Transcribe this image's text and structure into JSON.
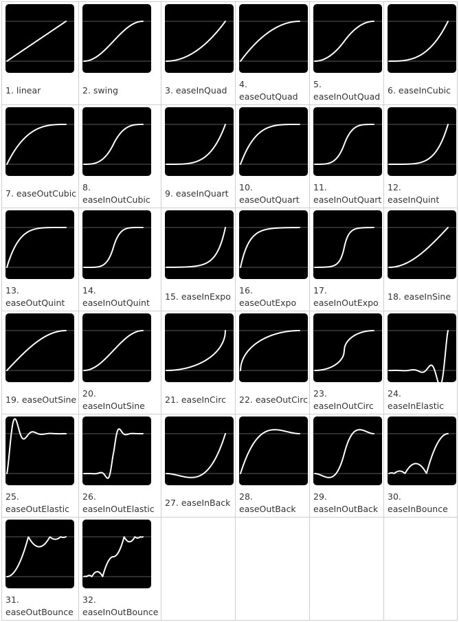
{
  "easings": [
    {
      "label": "1. linear",
      "icon": "linear-curve-icon"
    },
    {
      "label": "2. swing",
      "icon": "swing-curve-icon"
    },
    {
      "label": "3. easeInQuad",
      "icon": "easeInQuad-curve-icon"
    },
    {
      "label": "4. easeOutQuad",
      "icon": "easeOutQuad-curve-icon"
    },
    {
      "label": "5. easeInOutQuad",
      "icon": "easeInOutQuad-curve-icon"
    },
    {
      "label": "6. easeInCubic",
      "icon": "easeInCubic-curve-icon"
    },
    {
      "label": "7. easeOutCubic",
      "icon": "easeOutCubic-curve-icon"
    },
    {
      "label": "8. easeInOutCubic",
      "icon": "easeInOutCubic-curve-icon"
    },
    {
      "label": "9. easeInQuart",
      "icon": "easeInQuart-curve-icon"
    },
    {
      "label": "10. easeOutQuart",
      "icon": "easeOutQuart-curve-icon"
    },
    {
      "label": "11. easeInOutQuart",
      "icon": "easeInOutQuart-curve-icon"
    },
    {
      "label": "12. easeInQuint",
      "icon": "easeInQuint-curve-icon"
    },
    {
      "label": "13. easeOutQuint",
      "icon": "easeOutQuint-curve-icon"
    },
    {
      "label": "14. easeInOutQuint",
      "icon": "easeInOutQuint-curve-icon"
    },
    {
      "label": "15. easeInExpo",
      "icon": "easeInExpo-curve-icon"
    },
    {
      "label": "16. easeOutExpo",
      "icon": "easeOutExpo-curve-icon"
    },
    {
      "label": "17. easeInOutExpo",
      "icon": "easeInOutExpo-curve-icon"
    },
    {
      "label": "18. easeInSine",
      "icon": "easeInSine-curve-icon"
    },
    {
      "label": "19. easeOutSine",
      "icon": "easeOutSine-curve-icon"
    },
    {
      "label": "20. easeInOutSine",
      "icon": "easeInOutSine-curve-icon"
    },
    {
      "label": "21. easeInCirc",
      "icon": "easeInCirc-curve-icon"
    },
    {
      "label": "22. easeOutCirc",
      "icon": "easeOutCirc-curve-icon"
    },
    {
      "label": "23. easeInOutCirc",
      "icon": "easeInOutCirc-curve-icon"
    },
    {
      "label": "24. easeInElastic",
      "icon": "easeInElastic-curve-icon"
    },
    {
      "label": "25. easeOutElastic",
      "icon": "easeOutElastic-curve-icon"
    },
    {
      "label": "26. easeInOutElastic",
      "icon": "easeInOutElastic-curve-icon"
    },
    {
      "label": "27. easeInBack",
      "icon": "easeInBack-curve-icon"
    },
    {
      "label": "28. easeOutBack",
      "icon": "easeOutBack-curve-icon"
    },
    {
      "label": "29. easeInOutBack",
      "icon": "easeInOutBack-curve-icon"
    },
    {
      "label": "30. easeInBounce",
      "icon": "easeInBounce-curve-icon"
    },
    {
      "label": "31. easeOutBounce",
      "icon": "easeOutBounce-curve-icon"
    },
    {
      "label": "32. easeInOutBounce",
      "icon": "easeInOutBounce-curve-icon"
    }
  ],
  "colors": {
    "tile_background": "#000000",
    "curve": "#ffffff",
    "guide_lines": "#7a7a7a",
    "grid_border": "#cfcfcf",
    "label_text": "#333333"
  }
}
